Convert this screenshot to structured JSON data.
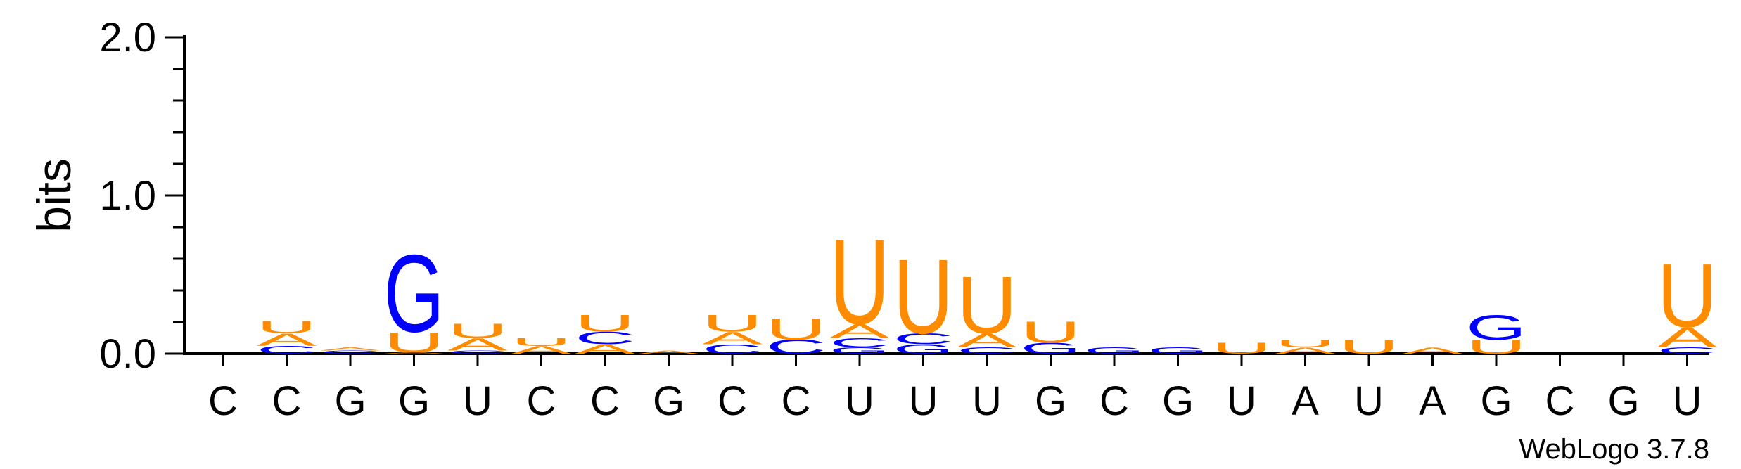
{
  "chart_data": {
    "type": "sequence_logo",
    "ylabel": "bits",
    "ylim": [
      0,
      2.0
    ],
    "y_ticks": [
      "0.0",
      "1.0",
      "2.0"
    ],
    "x_labels": [
      "C",
      "C",
      "G",
      "G",
      "U",
      "C",
      "C",
      "G",
      "C",
      "C",
      "U",
      "U",
      "U",
      "G",
      "C",
      "G",
      "U",
      "A",
      "U",
      "A",
      "G",
      "C",
      "G",
      "U"
    ],
    "credit": "WebLogo 3.7.8",
    "colors": {
      "A": "#ff8c00",
      "U": "#ff8c00",
      "G": "#0000ff",
      "C": "#0000ff"
    },
    "positions": [
      {
        "stack": []
      },
      {
        "stack": [
          {
            "letter": "C",
            "bits": 0.05
          },
          {
            "letter": "A",
            "bits": 0.08
          },
          {
            "letter": "U",
            "bits": 0.08
          }
        ]
      },
      {
        "stack": [
          {
            "letter": "C",
            "bits": 0.02
          },
          {
            "letter": "A",
            "bits": 0.02
          }
        ]
      },
      {
        "stack": [
          {
            "letter": "A",
            "bits": 0.01
          },
          {
            "letter": "U",
            "bits": 0.13
          },
          {
            "letter": "G",
            "bits": 0.5
          }
        ]
      },
      {
        "stack": [
          {
            "letter": "C",
            "bits": 0.02
          },
          {
            "letter": "A",
            "bits": 0.08
          },
          {
            "letter": "U",
            "bits": 0.09
          }
        ]
      },
      {
        "stack": [
          {
            "letter": "A",
            "bits": 0.05
          },
          {
            "letter": "U",
            "bits": 0.05
          }
        ]
      },
      {
        "stack": [
          {
            "letter": "A",
            "bits": 0.06
          },
          {
            "letter": "C",
            "bits": 0.08
          },
          {
            "letter": "U",
            "bits": 0.11
          }
        ]
      },
      {
        "stack": [
          {
            "letter": "A",
            "bits": 0.02
          }
        ]
      },
      {
        "stack": [
          {
            "letter": "C",
            "bits": 0.06
          },
          {
            "letter": "A",
            "bits": 0.08
          },
          {
            "letter": "U",
            "bits": 0.11
          }
        ]
      },
      {
        "stack": [
          {
            "letter": "C",
            "bits": 0.09
          },
          {
            "letter": "U",
            "bits": 0.14
          }
        ]
      },
      {
        "stack": [
          {
            "letter": "G",
            "bits": 0.04
          },
          {
            "letter": "C",
            "bits": 0.06
          },
          {
            "letter": "A",
            "bits": 0.09
          },
          {
            "letter": "U",
            "bits": 0.55
          }
        ]
      },
      {
        "stack": [
          {
            "letter": "G",
            "bits": 0.06
          },
          {
            "letter": "C",
            "bits": 0.07
          },
          {
            "letter": "U",
            "bits": 0.48
          }
        ]
      },
      {
        "stack": [
          {
            "letter": "C",
            "bits": 0.04
          },
          {
            "letter": "A",
            "bits": 0.09
          },
          {
            "letter": "U",
            "bits": 0.37
          }
        ]
      },
      {
        "stack": [
          {
            "letter": "G",
            "bits": 0.07
          },
          {
            "letter": "U",
            "bits": 0.14
          }
        ]
      },
      {
        "stack": [
          {
            "letter": "G",
            "bits": 0.04
          }
        ]
      },
      {
        "stack": [
          {
            "letter": "G",
            "bits": 0.04
          }
        ]
      },
      {
        "stack": [
          {
            "letter": "U",
            "bits": 0.07
          }
        ]
      },
      {
        "stack": [
          {
            "letter": "A",
            "bits": 0.04
          },
          {
            "letter": "U",
            "bits": 0.05
          }
        ]
      },
      {
        "stack": [
          {
            "letter": "U",
            "bits": 0.09
          }
        ]
      },
      {
        "stack": [
          {
            "letter": "A",
            "bits": 0.04
          }
        ]
      },
      {
        "stack": [
          {
            "letter": "U",
            "bits": 0.09
          },
          {
            "letter": "G",
            "bits": 0.16
          }
        ]
      },
      {
        "stack": []
      },
      {
        "stack": []
      },
      {
        "stack": [
          {
            "letter": "C",
            "bits": 0.04
          },
          {
            "letter": "A",
            "bits": 0.13
          },
          {
            "letter": "U",
            "bits": 0.41
          }
        ]
      }
    ]
  }
}
